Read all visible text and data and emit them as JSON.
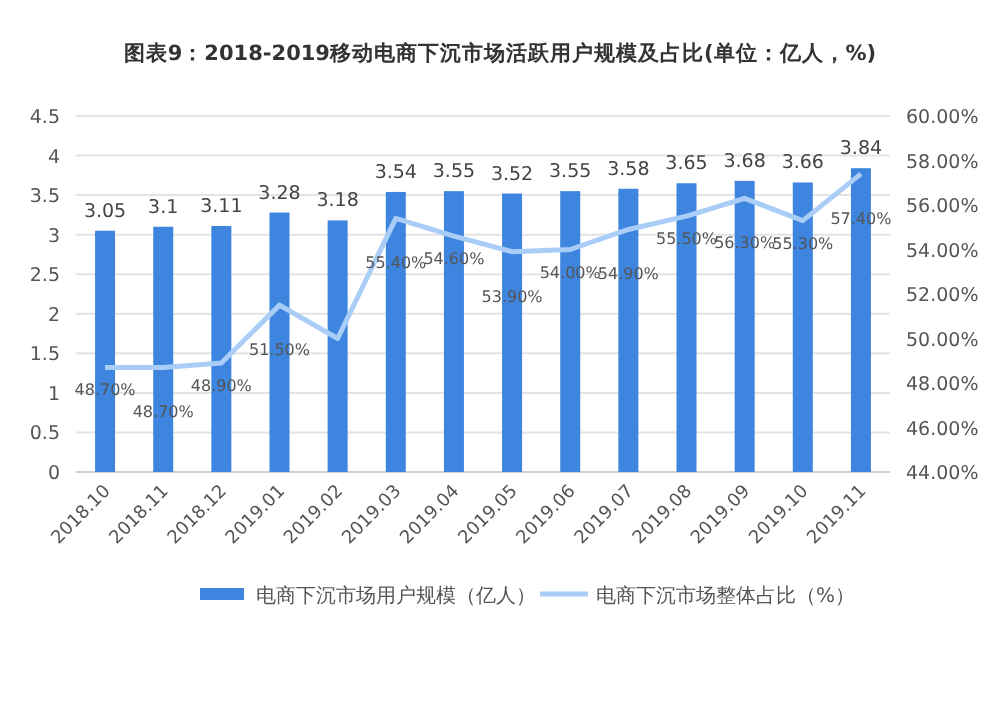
{
  "chart_data": {
    "type": "bar",
    "title": "图表9：2018-2019移动电商下沉市场活跃用户规模及占比(单位：亿人，%)",
    "categories": [
      "2018.10",
      "2018.11",
      "2018.12",
      "2019.01",
      "2019.02",
      "2019.03",
      "2019.04",
      "2019.05",
      "2019.06",
      "2019.07",
      "2019.08",
      "2019.09",
      "2019.10",
      "2019.11"
    ],
    "series": [
      {
        "name": "电商下沉市场用户规模（亿人）",
        "color": "#3d85de",
        "values": [
          3.05,
          3.1,
          3.11,
          3.28,
          3.18,
          3.54,
          3.55,
          3.52,
          3.55,
          3.58,
          3.65,
          3.68,
          3.66,
          3.84
        ],
        "value_labels": [
          "3.05",
          "3.1",
          "3.11",
          "3.28",
          "3.18",
          "3.54",
          "3.55",
          "3.52",
          "3.55",
          "3.58",
          "3.65",
          "3.68",
          "3.66",
          "3.84"
        ]
      },
      {
        "name": "电商下沉市场整体占比（%）",
        "type": "line",
        "axis": "y2",
        "color": "#a9cdf7",
        "values": [
          48.7,
          48.7,
          48.9,
          51.5,
          50.0,
          55.4,
          54.6,
          53.9,
          54.0,
          54.9,
          55.5,
          56.3,
          55.3,
          57.4
        ],
        "value_labels": [
          "48.70%",
          "48.70%",
          "48.90%",
          "51.50%",
          null,
          "55.40%",
          "54.60%",
          "53.90%",
          "54.00%",
          "54.90%",
          "55.50%",
          "56.30%",
          "55.30%",
          "57.40%"
        ]
      }
    ],
    "ylim": [
      0,
      4.5
    ],
    "yticks": [
      0,
      0.5,
      1,
      1.5,
      2,
      2.5,
      3,
      3.5,
      4,
      4.5
    ],
    "y2lim": [
      44,
      60
    ],
    "y2ticks": [
      {
        "value": 44,
        "label": "44.00%"
      },
      {
        "value": 46,
        "label": "46.00%"
      },
      {
        "value": 48,
        "label": "48.00%"
      },
      {
        "value": 50,
        "label": "50.00%"
      },
      {
        "value": 52,
        "label": "52.00%"
      },
      {
        "value": 54,
        "label": "54.00%"
      },
      {
        "value": 56,
        "label": "56.00%"
      },
      {
        "value": 58,
        "label": "58.00%"
      },
      {
        "value": 60,
        "label": "60.00%"
      }
    ],
    "grid": "y",
    "legend": "bottom"
  }
}
